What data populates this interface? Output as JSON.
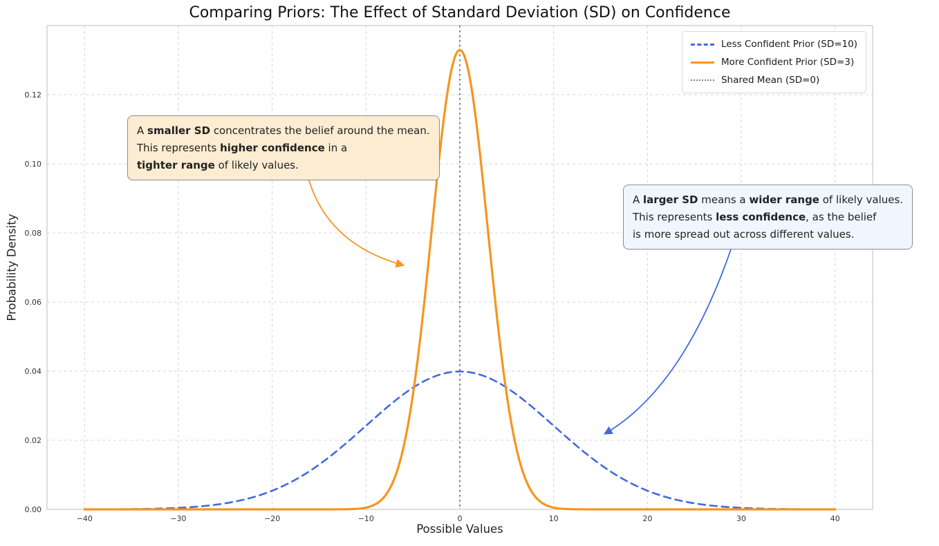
{
  "chart_data": {
    "type": "line",
    "title": "Comparing Priors: The Effect of Standard Deviation (SD) on Confidence",
    "xlabel": "Possible Values",
    "ylabel": "Probability Density",
    "xlim": [
      -44,
      44
    ],
    "ylim": [
      0,
      0.14
    ],
    "grid": true,
    "legend_position": "upper right",
    "xticks": [
      -40,
      -30,
      -20,
      -10,
      0,
      10,
      20,
      30,
      40
    ],
    "xtick_labels": [
      "−40",
      "−30",
      "−20",
      "−10",
      "0",
      "10",
      "20",
      "30",
      "40"
    ],
    "yticks": [
      0,
      0.02,
      0.04,
      0.06,
      0.08,
      0.1,
      0.12
    ],
    "ytick_labels": [
      "0.00",
      "0.02",
      "0.04",
      "0.06",
      "0.08",
      "0.10",
      "0.12"
    ],
    "series": [
      {
        "id": "less-confident",
        "name": "Less Confident Prior (SD=10)",
        "distribution": "normal",
        "mean": 0,
        "sd": 10,
        "peak_density": 0.0399,
        "color": "#4169e1",
        "style": "dashed",
        "line_width": 2.6,
        "x_range": [
          -40,
          40
        ]
      },
      {
        "id": "more-confident",
        "name": "More Confident Prior (SD=3)",
        "distribution": "normal",
        "mean": 0,
        "sd": 3,
        "peak_density": 0.133,
        "color": "#f7941d",
        "style": "solid",
        "line_width": 3.2,
        "x_range": [
          -40,
          40
        ]
      }
    ],
    "vline": {
      "label": "Shared Mean (SD=0)",
      "x": 0,
      "color": "#7f7f7f",
      "style": "dotted"
    }
  },
  "annotations": [
    {
      "id": "smaller-sd",
      "bg": "#fcecd2",
      "border": "#8c8c8c",
      "arrow_color": "#f7941d",
      "segments": [
        {
          "text": "A ",
          "bold": false
        },
        {
          "text": "smaller SD",
          "bold": true
        },
        {
          "text": " concentrates the belief around the mean.\nThis represents ",
          "bold": false
        },
        {
          "text": "higher confidence",
          "bold": true
        },
        {
          "text": " in a\n",
          "bold": false
        },
        {
          "text": "tighter range",
          "bold": true
        },
        {
          "text": " of likely values.",
          "bold": false
        }
      ]
    },
    {
      "id": "larger-sd",
      "bg": "#f0f6fd",
      "border": "#8c8c8c",
      "arrow_color": "#4169e1",
      "segments": [
        {
          "text": "A ",
          "bold": false
        },
        {
          "text": "larger SD",
          "bold": true
        },
        {
          "text": " means a ",
          "bold": false
        },
        {
          "text": "wider range",
          "bold": true
        },
        {
          "text": " of likely values.\nThis represents ",
          "bold": false
        },
        {
          "text": "less confidence",
          "bold": true
        },
        {
          "text": ", as the belief\nis more spread out across different values.",
          "bold": false
        }
      ]
    }
  ]
}
